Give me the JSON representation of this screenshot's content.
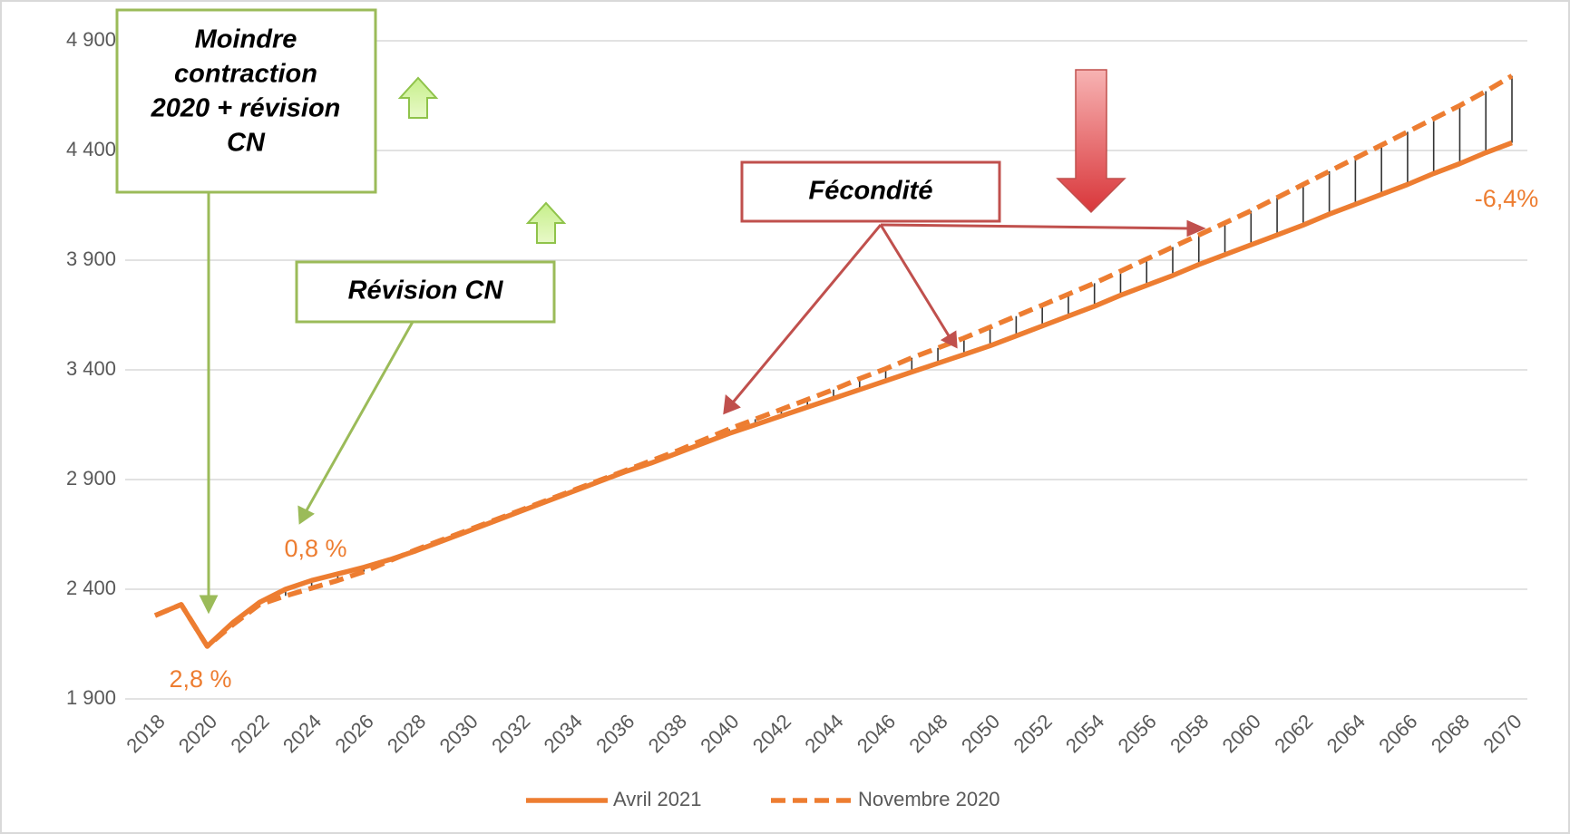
{
  "chart_data": {
    "type": "line",
    "categories": [
      "2018",
      null,
      "2020",
      null,
      "2022",
      null,
      "2024",
      null,
      "2026",
      null,
      "2028",
      null,
      "2030",
      null,
      "2032",
      null,
      "2034",
      null,
      "2036",
      null,
      "2038",
      null,
      "2040",
      null,
      "2042",
      null,
      "2044",
      null,
      "2046",
      null,
      "2048",
      null,
      "2050",
      null,
      "2052",
      null,
      "2054",
      null,
      "2056",
      null,
      "2058",
      null,
      "2060",
      null,
      "2062",
      null,
      "2064",
      null,
      "2066",
      null,
      "2068",
      null,
      "2070"
    ],
    "series": [
      {
        "name": "Avril 2021",
        "color": "#ed7d31",
        "style": "solid",
        "values": [
          2280,
          2330,
          2140,
          2250,
          2340,
          2400,
          2440,
          2470,
          2500,
          2535,
          2575,
          2620,
          2665,
          2710,
          2755,
          2800,
          2845,
          2890,
          2935,
          2975,
          3020,
          3065,
          3110,
          3150,
          3190,
          3230,
          3270,
          3310,
          3350,
          3390,
          3430,
          3470,
          3510,
          3555,
          3600,
          3645,
          3690,
          3740,
          3785,
          3830,
          3880,
          3925,
          3970,
          4015,
          4060,
          4110,
          4155,
          4200,
          4245,
          4295,
          4340,
          4390,
          4435
        ]
      },
      {
        "name": "Novembre 2020",
        "color": "#ed7d31",
        "style": "dashed",
        "values": [
          2280,
          2330,
          2140,
          2240,
          2330,
          2370,
          2405,
          2440,
          2480,
          2530,
          2580,
          2625,
          2670,
          2715,
          2760,
          2805,
          2850,
          2895,
          2940,
          2985,
          3030,
          3080,
          3130,
          3175,
          3220,
          3265,
          3310,
          3360,
          3405,
          3455,
          3500,
          3545,
          3595,
          3645,
          3695,
          3745,
          3795,
          3850,
          3905,
          3960,
          4015,
          4070,
          4125,
          4185,
          4245,
          4305,
          4365,
          4425,
          4485,
          4545,
          4605,
          4670,
          4740
        ]
      }
    ],
    "ylim": [
      1900,
      4900
    ],
    "yticks": [
      {
        "value": 1900,
        "label": "1 900"
      },
      {
        "value": 2400,
        "label": "2 400"
      },
      {
        "value": 2900,
        "label": "2 900"
      },
      {
        "value": 3400,
        "label": "3 400"
      },
      {
        "value": 3900,
        "label": "3 900"
      },
      {
        "value": 4400,
        "label": "4 400"
      },
      {
        "value": 4900,
        "label": "4 900"
      }
    ],
    "grid": true,
    "drop_lines": true,
    "legend": "bottom",
    "annotations": [
      {
        "text": [
          "Moindre",
          "contraction",
          "2020 + révision",
          "CN"
        ]
      },
      {
        "text": [
          "Révision CN"
        ]
      },
      {
        "text": [
          "Fécondité"
        ]
      },
      {
        "text": [
          "0,8 %"
        ]
      },
      {
        "text": [
          "2,8 %"
        ]
      },
      {
        "text": [
          "-6,4%"
        ]
      }
    ]
  }
}
